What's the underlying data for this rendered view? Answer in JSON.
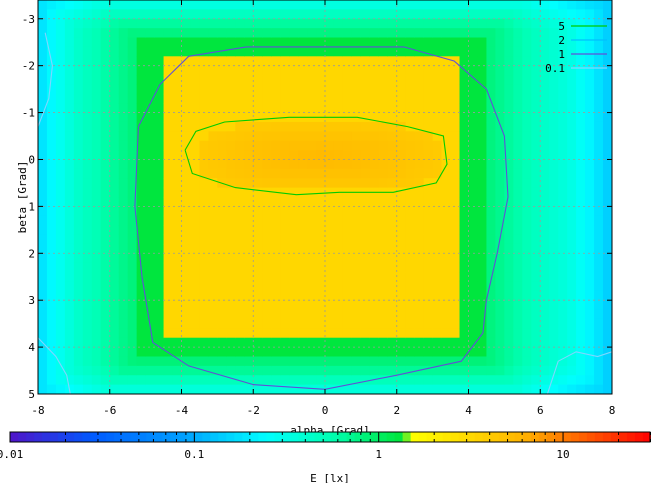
{
  "chart_data": {
    "type": "heatmap",
    "xlabel": "alpha [Grad]",
    "ylabel": "beta [Grad]",
    "xlim": [
      -8,
      8
    ],
    "ylim": [
      -3.4,
      5
    ],
    "y_reversed": true,
    "x_ticks": [
      -8,
      -6,
      -4,
      -2,
      0,
      2,
      4,
      6,
      8
    ],
    "y_ticks": [
      -3,
      -2,
      -1,
      0,
      1,
      2,
      3,
      4,
      5
    ],
    "grid": true,
    "legend_position": "top-right",
    "colorbar": {
      "label": "E [lx]",
      "scale": "log",
      "range": [
        0.01,
        30
      ],
      "ticks": [
        {
          "value": 0.01,
          "label": "0.01"
        },
        {
          "value": 0.1,
          "label": "0.1"
        },
        {
          "value": 1,
          "label": "1"
        },
        {
          "value": 10,
          "label": "10"
        }
      ]
    },
    "contour_legend": [
      {
        "label": "5",
        "color": "#00cc00"
      },
      {
        "label": "2",
        "color": "#00bfff"
      },
      {
        "label": "1",
        "color": "#5f50d8"
      },
      {
        "label": "0.1",
        "color": "#7fd6ff"
      }
    ],
    "levels": [
      {
        "level": 1,
        "color": "#5f50d8",
        "points": [
          [
            -5.2,
            -0.7
          ],
          [
            -4.6,
            -1.6
          ],
          [
            -3.8,
            -2.2
          ],
          [
            -2.2,
            -2.4
          ],
          [
            0,
            -2.4
          ],
          [
            2.2,
            -2.4
          ],
          [
            3.6,
            -2.1
          ],
          [
            4.5,
            -1.5
          ],
          [
            5,
            -0.5
          ],
          [
            5.1,
            0.8
          ],
          [
            4.8,
            2.0
          ],
          [
            4.5,
            3.0
          ],
          [
            4.4,
            3.7
          ],
          [
            3.8,
            4.3
          ],
          [
            2,
            4.6
          ],
          [
            0,
            4.9
          ],
          [
            -2,
            4.8
          ],
          [
            -3.8,
            4.4
          ],
          [
            -4.8,
            3.9
          ],
          [
            -5.1,
            2.5
          ],
          [
            -5.3,
            1.0
          ],
          [
            -5.2,
            -0.7
          ]
        ]
      },
      {
        "level": 5,
        "color": "#00cc00",
        "points": [
          [
            -3.9,
            -0.2
          ],
          [
            -3.6,
            -0.6
          ],
          [
            -2.8,
            -0.8
          ],
          [
            -1,
            -0.9
          ],
          [
            0.9,
            -0.9
          ],
          [
            2.3,
            -0.7
          ],
          [
            3.3,
            -0.5
          ],
          [
            3.4,
            0.1
          ],
          [
            3.1,
            0.5
          ],
          [
            1.9,
            0.7
          ],
          [
            0.4,
            0.7
          ],
          [
            -0.8,
            0.75
          ],
          [
            -2.5,
            0.6
          ],
          [
            -3.7,
            0.3
          ],
          [
            -3.9,
            -0.2
          ]
        ]
      },
      {
        "level": 0.1,
        "color": "#7fd6ff",
        "points": [
          [
            -7.8,
            -2.7
          ],
          [
            -7.6,
            -2.0
          ],
          [
            -7.7,
            -1.3
          ],
          [
            -8,
            -0.7
          ]
        ]
      },
      {
        "level": 0.1,
        "color": "#7fd6ff",
        "points": [
          [
            -8,
            3.8
          ],
          [
            -7.5,
            4.2
          ],
          [
            -7.2,
            4.6
          ],
          [
            -7.1,
            5
          ]
        ]
      },
      {
        "level": 0.1,
        "color": "#7fd6ff",
        "points": [
          [
            6.2,
            5
          ],
          [
            6.5,
            4.3
          ],
          [
            7.0,
            4.1
          ],
          [
            7.6,
            4.2
          ],
          [
            8,
            4.1
          ]
        ]
      }
    ],
    "surface": {
      "description_free": true,
      "inner_plateau": {
        "x": [
          -4.6,
          3.8
        ],
        "y": [
          -2.1,
          3.8
        ],
        "value": 3.2
      },
      "core": {
        "x": [
          -3.6,
          3.3
        ],
        "y": [
          -0.8,
          0.7
        ],
        "value": 5.5
      },
      "halo_value": 1.3,
      "background_value": 0.12
    }
  }
}
